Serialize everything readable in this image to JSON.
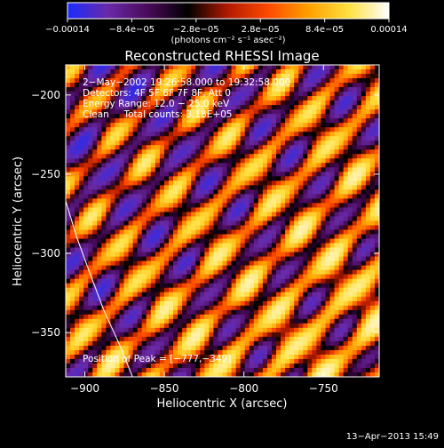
{
  "chart_data": {
    "type": "heatmap",
    "title": "Reconstructed RHESSI Image",
    "xlabel": "Heliocentric X (arcsec)",
    "ylabel": "Heliocentric Y (arcsec)",
    "xlim": [
      -912,
      -715
    ],
    "ylim": [
      -378,
      -181
    ],
    "x_ticks": [
      -900,
      -850,
      -800,
      -750
    ],
    "x_tick_labels": [
      "−900",
      "−850",
      "−800",
      "−750"
    ],
    "y_ticks": [
      -200,
      -250,
      -300,
      -350
    ],
    "y_tick_labels": [
      "−200",
      "−250",
      "−300",
      "−350"
    ],
    "colorbar": {
      "min": -0.00014,
      "max": 0.00014,
      "colormap": "blue-purple-red-orange-yellow-white",
      "ticks": [
        -0.00014,
        -8.4e-05,
        -2.8e-05,
        2.8e-05,
        8.4e-05,
        0.00014
      ],
      "tick_labels": [
        "−0.00014",
        "−8.4e−05",
        "−2.8e−05",
        "2.8e−05",
        "8.4e−05",
        "0.00014"
      ],
      "unit_label": "(photons cm⁻² s⁻¹ asec⁻²)"
    },
    "annotations": [
      "2−May−2002 19:26:58.000 to 19:32:58.000",
      "Detectors: 4F 5F 6F 7F 8F, Att 0",
      "Energy Range: 12.0 − 25.0 keV",
      "Clean     Total counts: 3.18E+05"
    ],
    "peak_label": "Position of Peak = [−777,−349]",
    "peak": [
      -777,
      -349
    ],
    "limb_curve": [
      [
        -912,
        -267
      ],
      [
        -905,
        -290
      ],
      [
        -897,
        -312
      ],
      [
        -888,
        -336
      ],
      [
        -878,
        -358
      ],
      [
        -870,
        -378
      ]
    ],
    "colors": {
      "background": "#000000",
      "frame": "#ffffff",
      "limb": "#ffffff",
      "colormap_stops": [
        "#1a2bff",
        "#6a2aa8",
        "#4a0a5a",
        "#000000",
        "#b31a00",
        "#ff4a00",
        "#ffa000",
        "#ffe040",
        "#ffffff"
      ]
    }
  },
  "timestamp": "13−Apr−2013 15:49"
}
